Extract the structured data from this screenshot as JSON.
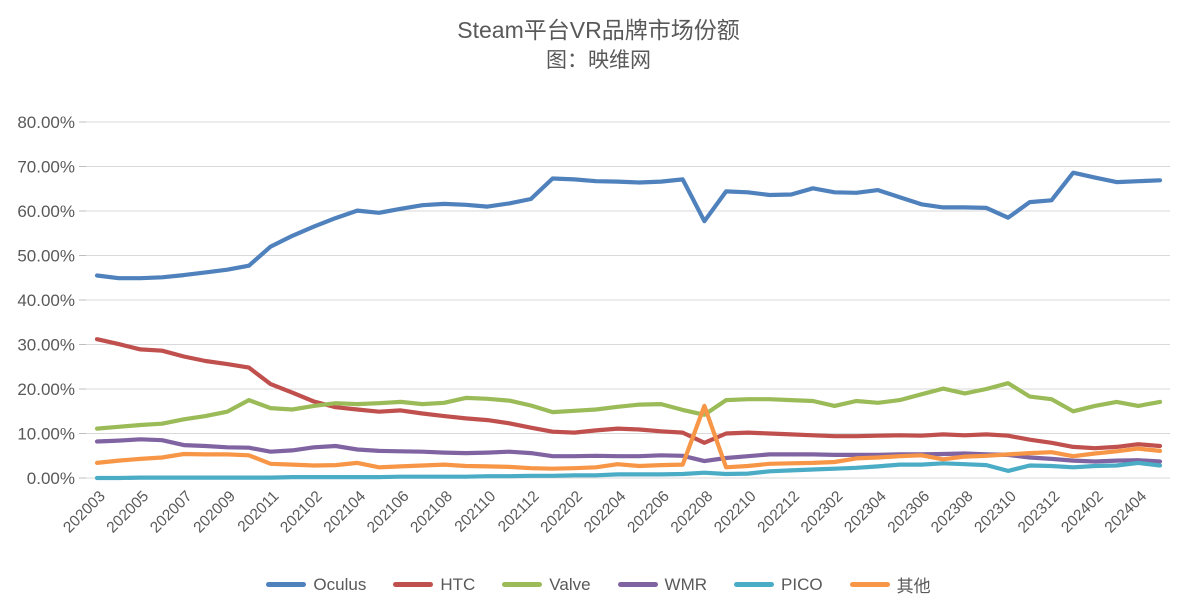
{
  "title": {
    "line1": "Steam平台VR品牌市场份额",
    "line2": "图：映维网"
  },
  "axis": {
    "y_tick_labels": [
      "0.00%",
      "10.00%",
      "20.00%",
      "30.00%",
      "40.00%",
      "50.00%",
      "60.00%",
      "70.00%",
      "80.00%"
    ],
    "x_label_interval": 2,
    "grid_color": "#d9d9d9",
    "tick_color": "#bfbfbf",
    "label_color": "#595959"
  },
  "legend": {
    "items": [
      {
        "label": "Oculus",
        "color": "#4f81bd"
      },
      {
        "label": "HTC",
        "color": "#c0504d"
      },
      {
        "label": "Valve",
        "color": "#9bbb59"
      },
      {
        "label": "WMR",
        "color": "#8064a2"
      },
      {
        "label": "PICO",
        "color": "#4bacc6"
      },
      {
        "label": "其他",
        "color": "#f79646"
      }
    ]
  },
  "chart_data": {
    "type": "line",
    "title": "Steam平台VR品牌市场份额",
    "subtitle": "图：映维网",
    "ylabel": "",
    "xlabel": "",
    "ylim": [
      0,
      80
    ],
    "grid": true,
    "legend_position": "bottom",
    "x": [
      "202003",
      "202004",
      "202005",
      "202006",
      "202007",
      "202008",
      "202009",
      "202010",
      "202011",
      "202101",
      "202102",
      "202103",
      "202104",
      "202105",
      "202106",
      "202107",
      "202108",
      "202109",
      "202110",
      "202111",
      "202112",
      "202201",
      "202202",
      "202203",
      "202204",
      "202205",
      "202206",
      "202207",
      "202208",
      "202209",
      "202210",
      "202211",
      "202212",
      "202301",
      "202302",
      "202303",
      "202304",
      "202305",
      "202306",
      "202307",
      "202308",
      "202309",
      "202310",
      "202311",
      "202312",
      "202401",
      "202402",
      "202403",
      "202404",
      "202405"
    ],
    "series": [
      {
        "name": "Oculus",
        "color": "#4f81bd",
        "values": [
          45.5,
          44.9,
          44.9,
          45.1,
          45.6,
          46.2,
          46.8,
          47.7,
          52.0,
          54.4,
          56.5,
          58.4,
          60.1,
          59.6,
          60.5,
          61.3,
          61.6,
          61.4,
          61.0,
          61.7,
          62.7,
          67.3,
          67.1,
          66.7,
          66.6,
          66.4,
          66.6,
          67.1,
          57.7,
          64.4,
          64.2,
          63.6,
          63.7,
          65.1,
          64.2,
          64.1,
          64.7,
          63.1,
          61.5,
          60.8,
          60.8,
          60.7,
          58.5,
          62.0,
          62.4,
          68.6,
          67.5,
          66.5,
          66.7,
          66.9
        ]
      },
      {
        "name": "HTC",
        "color": "#c0504d",
        "values": [
          31.2,
          30.1,
          28.9,
          28.6,
          27.3,
          26.3,
          25.6,
          24.8,
          21.1,
          19.2,
          17.2,
          15.9,
          15.4,
          14.9,
          15.2,
          14.5,
          13.9,
          13.4,
          13.0,
          12.3,
          11.3,
          10.4,
          10.2,
          10.7,
          11.1,
          10.9,
          10.5,
          10.2,
          7.9,
          10.0,
          10.2,
          10.0,
          9.8,
          9.6,
          9.4,
          9.4,
          9.5,
          9.6,
          9.5,
          9.8,
          9.6,
          9.8,
          9.5,
          8.6,
          7.9,
          7.0,
          6.7,
          7.0,
          7.6,
          7.2
        ]
      },
      {
        "name": "Valve",
        "color": "#9bbb59",
        "values": [
          11.1,
          11.5,
          11.9,
          12.2,
          13.2,
          13.9,
          14.9,
          17.5,
          15.7,
          15.4,
          16.2,
          16.8,
          16.6,
          16.8,
          17.1,
          16.6,
          16.9,
          18.0,
          17.8,
          17.4,
          16.3,
          14.8,
          15.1,
          15.4,
          16.0,
          16.5,
          16.6,
          15.3,
          14.2,
          17.5,
          17.7,
          17.7,
          17.5,
          17.3,
          16.2,
          17.3,
          16.9,
          17.5,
          18.8,
          20.1,
          19.0,
          20.0,
          21.3,
          18.3,
          17.7,
          15.0,
          16.2,
          17.1,
          16.2,
          17.1
        ]
      },
      {
        "name": "WMR",
        "color": "#8064a2",
        "values": [
          8.2,
          8.4,
          8.7,
          8.5,
          7.4,
          7.2,
          6.9,
          6.8,
          5.9,
          6.2,
          6.9,
          7.2,
          6.4,
          6.1,
          6.0,
          5.9,
          5.7,
          5.6,
          5.7,
          5.9,
          5.6,
          4.9,
          4.9,
          5.0,
          4.9,
          4.9,
          5.1,
          5.0,
          3.8,
          4.5,
          4.9,
          5.3,
          5.3,
          5.3,
          5.2,
          5.2,
          5.2,
          5.3,
          5.3,
          5.4,
          5.5,
          5.3,
          5.2,
          4.6,
          4.3,
          3.9,
          3.7,
          3.9,
          4.0,
          3.7
        ]
      },
      {
        "name": "PICO",
        "color": "#4bacc6",
        "values": [
          0.0,
          0.0,
          0.1,
          0.1,
          0.1,
          0.1,
          0.1,
          0.1,
          0.1,
          0.2,
          0.2,
          0.2,
          0.2,
          0.2,
          0.3,
          0.3,
          0.3,
          0.3,
          0.4,
          0.4,
          0.5,
          0.5,
          0.6,
          0.6,
          0.8,
          0.8,
          0.8,
          0.9,
          1.2,
          0.9,
          1.0,
          1.5,
          1.7,
          1.9,
          2.1,
          2.3,
          2.6,
          3.0,
          3.0,
          3.3,
          3.1,
          2.9,
          1.6,
          2.8,
          2.7,
          2.4,
          2.7,
          2.8,
          3.4,
          2.8
        ]
      },
      {
        "name": "其他",
        "color": "#f79646",
        "values": [
          3.4,
          3.9,
          4.3,
          4.6,
          5.4,
          5.3,
          5.3,
          5.1,
          3.2,
          3.0,
          2.8,
          2.9,
          3.4,
          2.4,
          2.6,
          2.8,
          3.0,
          2.7,
          2.6,
          2.5,
          2.2,
          2.1,
          2.2,
          2.4,
          3.1,
          2.7,
          2.9,
          3.0,
          16.2,
          2.4,
          2.7,
          3.2,
          3.3,
          3.4,
          3.6,
          4.4,
          4.6,
          4.9,
          5.1,
          4.2,
          4.8,
          5.0,
          5.3,
          5.6,
          5.8,
          4.9,
          5.5,
          6.0,
          6.6,
          6.1
        ]
      }
    ]
  }
}
